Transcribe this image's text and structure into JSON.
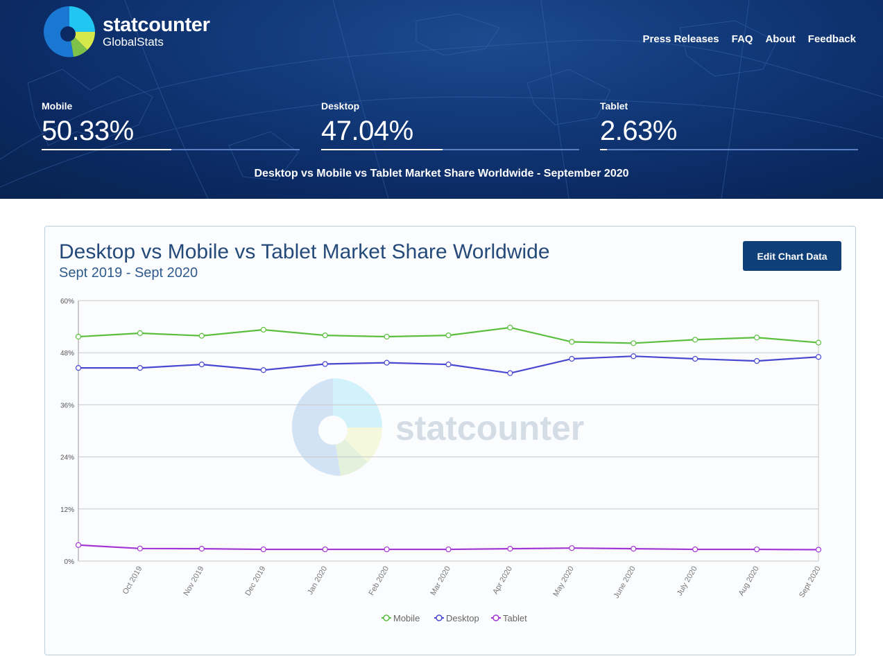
{
  "brand": {
    "name": "statcounter",
    "sub": "GlobalStats",
    "watermark": "statcounter",
    "colors": {
      "navy": "#0b2a63",
      "accent": "#0f3f78"
    }
  },
  "nav": {
    "items": [
      "Press Releases",
      "FAQ",
      "About",
      "Feedback"
    ]
  },
  "stats": [
    {
      "label": "Mobile",
      "value": "50.33%",
      "share": 0.5033
    },
    {
      "label": "Desktop",
      "value": "47.04%",
      "share": 0.4704
    },
    {
      "label": "Tablet",
      "value": "2.63%",
      "share": 0.0263
    }
  ],
  "hero_caption": "Desktop vs Mobile vs Tablet Market Share Worldwide - September 2020",
  "card": {
    "title": "Desktop vs Mobile vs Tablet Market Share Worldwide",
    "subtitle": "Sept 2019 - Sept 2020",
    "edit_button": "Edit Chart Data"
  },
  "chart_data": {
    "type": "line",
    "categories": [
      "Sept 2019",
      "Oct 2019",
      "Nov 2019",
      "Dec 2019",
      "Jan 2020",
      "Feb 2020",
      "Mar 2020",
      "Apr 2020",
      "May 2020",
      "June 2020",
      "July 2020",
      "Aug 2020",
      "Sept 2020"
    ],
    "tick_labels": [
      "",
      "Oct 2019",
      "Nov 2019",
      "Dec 2019",
      "Jan 2020",
      "Feb 2020",
      "Mar 2020",
      "Apr 2020",
      "May 2020",
      "June 2020",
      "July 2020",
      "Aug 2020",
      "Sept 2020"
    ],
    "y_ticks": [
      "0%",
      "12%",
      "24%",
      "36%",
      "48%",
      "60%"
    ],
    "ylim": [
      0,
      60
    ],
    "grid": true,
    "legend_position": "bottom-center",
    "series": [
      {
        "name": "Mobile",
        "color": "#5abf3e",
        "values": [
          51.7,
          52.5,
          51.9,
          53.3,
          52.0,
          51.7,
          52.0,
          53.8,
          50.5,
          50.2,
          51.0,
          51.5,
          50.33
        ]
      },
      {
        "name": "Desktop",
        "color": "#4747d1",
        "values": [
          44.5,
          44.5,
          45.3,
          44.0,
          45.4,
          45.7,
          45.3,
          43.3,
          46.6,
          47.2,
          46.6,
          46.1,
          47.04
        ]
      },
      {
        "name": "Tablet",
        "color": "#a335d4",
        "values": [
          3.7,
          2.9,
          2.85,
          2.7,
          2.7,
          2.7,
          2.7,
          2.85,
          3.0,
          2.85,
          2.7,
          2.7,
          2.63
        ]
      }
    ]
  }
}
